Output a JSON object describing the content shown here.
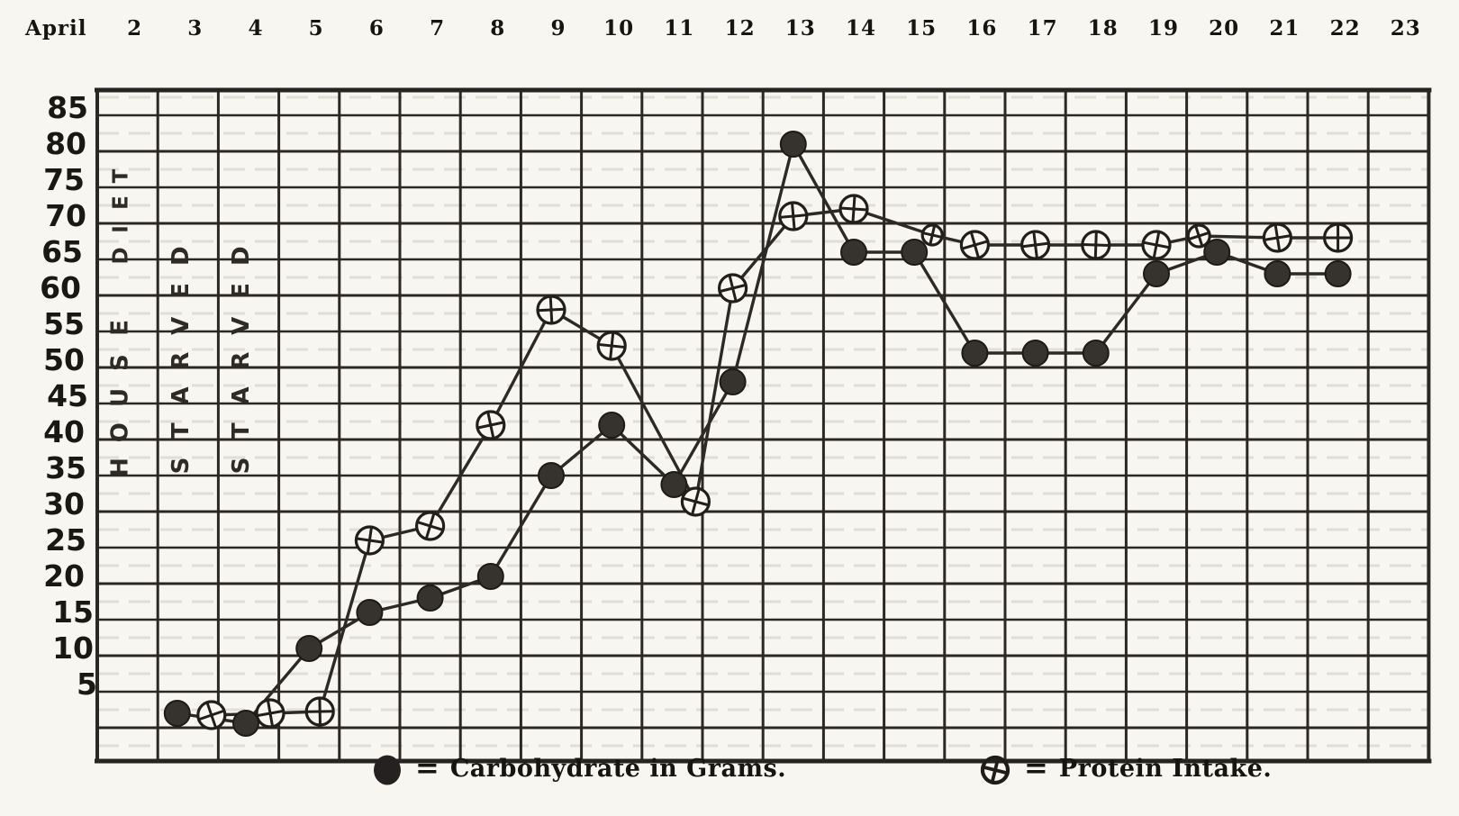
{
  "document": {
    "kind": "scanned hand-drawn diet record chart",
    "paper_color": "#f8f6f1",
    "ink_color": "#1c1a17"
  },
  "x_axis": {
    "title": "April",
    "dates": [
      "2",
      "3",
      "4",
      "5",
      "6",
      "7",
      "8",
      "9",
      "10",
      "11",
      "12",
      "13",
      "14",
      "15",
      "16",
      "17",
      "18",
      "19",
      "20",
      "21",
      "22",
      "23"
    ]
  },
  "y_axis": {
    "tick_labels": [
      "85",
      "80",
      "75",
      "70",
      "65",
      "60",
      "55",
      "50",
      "45",
      "40",
      "35",
      "30",
      "25",
      "20",
      "15",
      "10",
      "5"
    ]
  },
  "annotations": [
    {
      "text": "HOUSE DIET",
      "column_date": "2"
    },
    {
      "text": "STARVED",
      "column_date": "3"
    },
    {
      "text": "STARVED",
      "column_date": "4"
    }
  ],
  "legend": {
    "items": [
      {
        "marker": "filled-circle",
        "equals": "=",
        "label": "Carbohydrate in Grams."
      },
      {
        "marker": "crossed-circle",
        "equals": "=",
        "label": "Protein Intake."
      }
    ]
  },
  "chart_data": {
    "type": "line",
    "title": "",
    "xlabel": "April (date)",
    "ylabel": "",
    "x": [
      3,
      4,
      5,
      6,
      7,
      8,
      9,
      10,
      11,
      12,
      13,
      14,
      15,
      16,
      17,
      18,
      19,
      20,
      21,
      22
    ],
    "x_domain": [
      "2",
      "23"
    ],
    "series": [
      {
        "name": "Carbohydrate in Grams",
        "marker": "filled-circle",
        "values": [
          2,
          1,
          11,
          16,
          18,
          21,
          35,
          42,
          34,
          48,
          81,
          66,
          66,
          52,
          52,
          52,
          63,
          66,
          63,
          63
        ]
      },
      {
        "name": "Protein Intake",
        "marker": "crossed-circle",
        "values": [
          2,
          2,
          3,
          26,
          28,
          42,
          58,
          53,
          32,
          61,
          71,
          72,
          68,
          67,
          67,
          67,
          67,
          68,
          68,
          68
        ]
      }
    ],
    "ylim": [
      0,
      85
    ],
    "y_tick_step": 5,
    "grid": true,
    "legend_position": "bottom"
  }
}
